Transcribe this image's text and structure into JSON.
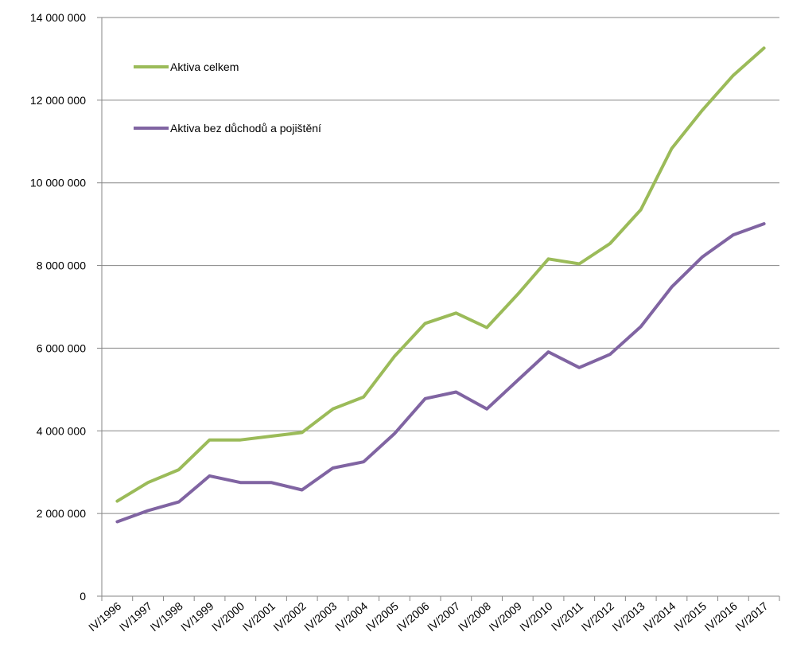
{
  "chart_data": {
    "type": "line",
    "title": "",
    "xlabel": "",
    "ylabel": "",
    "categories": [
      "IV/1996",
      "IV/1997",
      "IV/1998",
      "IV/1999",
      "IV/2000",
      "IV/2001",
      "IV/2002",
      "IV/2003",
      "IV/2004",
      "IV/2005",
      "IV/2006",
      "IV/2007",
      "IV/2008",
      "IV/2009",
      "IV/2010",
      "IV/2011",
      "IV/2012",
      "IV/2013",
      "IV/2014",
      "IV/2015",
      "IV/2016",
      "IV/2017"
    ],
    "ylim": [
      0,
      14000000
    ],
    "y_ticks": [
      0,
      2000000,
      4000000,
      6000000,
      8000000,
      10000000,
      12000000,
      14000000
    ],
    "y_tick_labels": [
      "0",
      "2 000 000",
      "4 000 000",
      "6 000 000",
      "8 000 000",
      "10 000 000",
      "12 000 000",
      "14 000 000"
    ],
    "grid": true,
    "legend_position": "top-left inside",
    "series": [
      {
        "name": "Aktiva celkem",
        "color": "#9bbb59",
        "values": [
          2300000,
          2750000,
          3060000,
          3780000,
          3780000,
          3870000,
          3960000,
          4530000,
          4820000,
          5800000,
          6600000,
          6850000,
          6500000,
          7300000,
          8160000,
          8040000,
          8530000,
          9350000,
          10830000,
          11760000,
          12600000,
          13260000
        ]
      },
      {
        "name": "Aktiva bez důchodů a pojištění",
        "color": "#8064a2",
        "values": [
          1800000,
          2070000,
          2280000,
          2910000,
          2750000,
          2750000,
          2570000,
          3100000,
          3250000,
          3930000,
          4780000,
          4940000,
          4530000,
          5220000,
          5910000,
          5530000,
          5850000,
          6520000,
          7480000,
          8210000,
          8740000,
          9010000
        ]
      }
    ]
  }
}
